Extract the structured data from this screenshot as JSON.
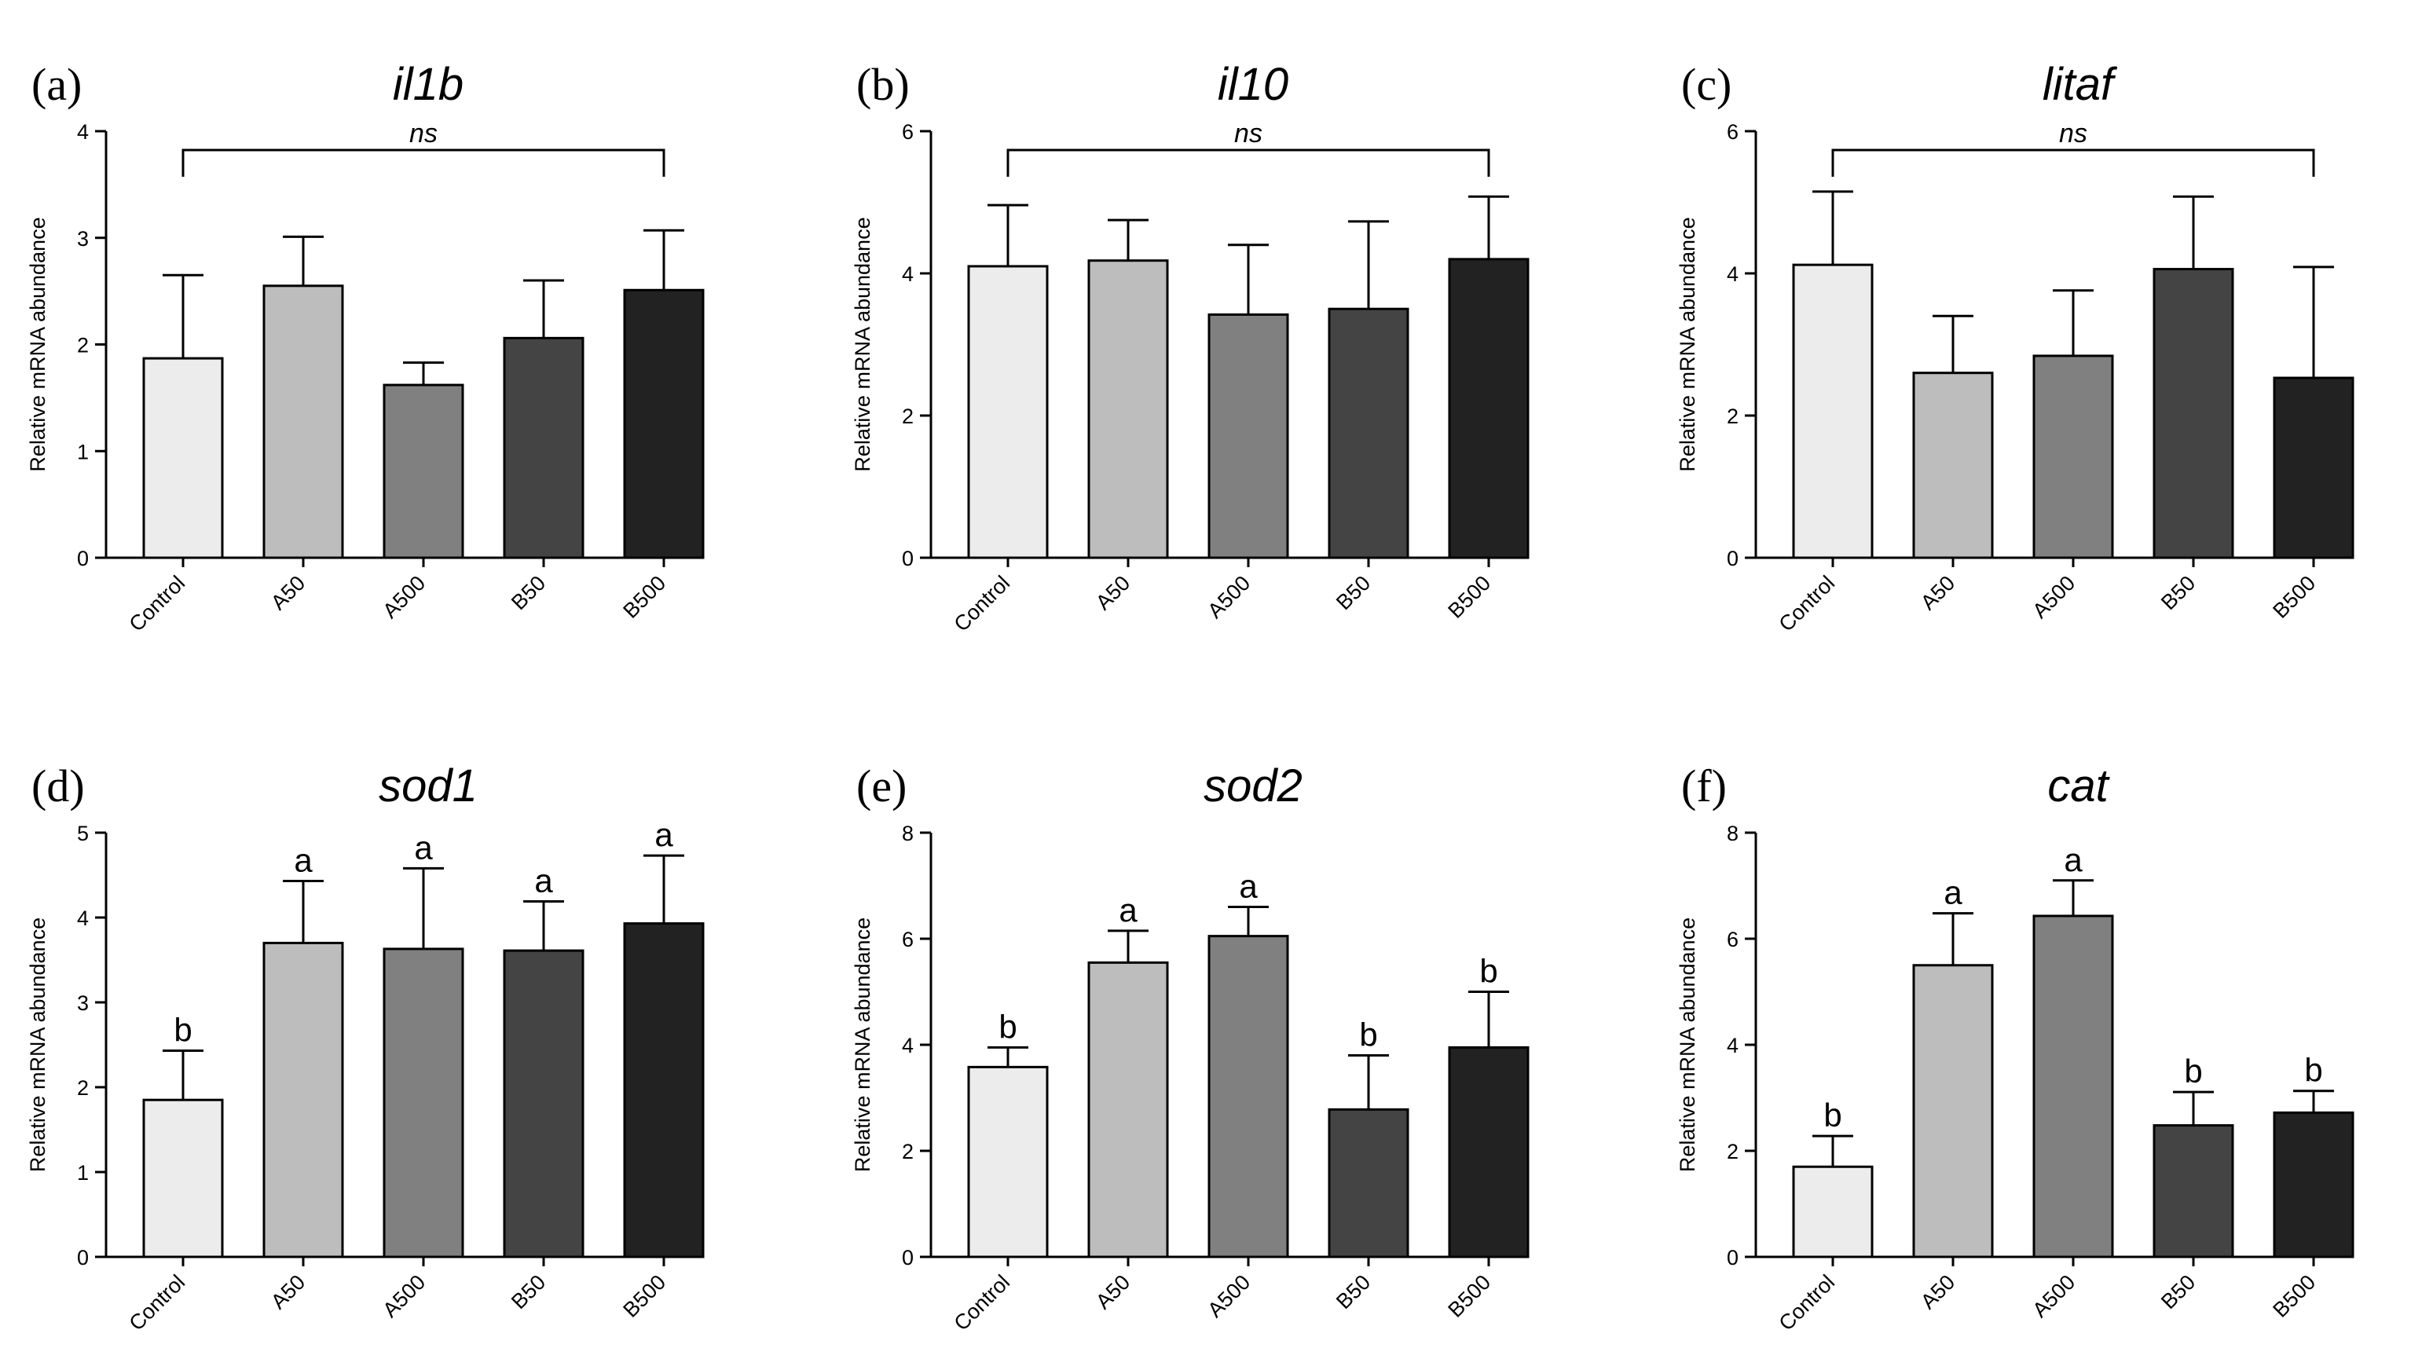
{
  "figure": {
    "y_axis_label": "Relative mRNA abundance",
    "categories": [
      "Control",
      "A50",
      "A500",
      "B50",
      "B500"
    ],
    "bar_colors": [
      "#ececec",
      "#bdbdbd",
      "#808080",
      "#444444",
      "#222222"
    ]
  },
  "chart_data": [
    {
      "type": "bar",
      "panel_label": "(a)",
      "title": "il1b",
      "ylabel": "Relative mRNA abundance",
      "categories": [
        "Control",
        "A50",
        "A500",
        "B50",
        "B500"
      ],
      "values": [
        1.87,
        2.55,
        1.62,
        2.06,
        2.51
      ],
      "errors": [
        0.78,
        0.46,
        0.21,
        0.54,
        0.56
      ],
      "ylim": [
        0,
        4
      ],
      "yticks": [
        0,
        1,
        2,
        3,
        4
      ],
      "annotation": "ns",
      "significance_letters": []
    },
    {
      "type": "bar",
      "panel_label": "(b)",
      "title": "il10",
      "ylabel": "Relative mRNA abundance",
      "categories": [
        "Control",
        "A50",
        "A500",
        "B50",
        "B500"
      ],
      "values": [
        4.1,
        4.18,
        3.42,
        3.5,
        4.2
      ],
      "errors": [
        0.86,
        0.57,
        0.98,
        1.23,
        0.88
      ],
      "ylim": [
        0,
        6
      ],
      "yticks": [
        0,
        2,
        4,
        6
      ],
      "annotation": "ns",
      "significance_letters": []
    },
    {
      "type": "bar",
      "panel_label": "(c)",
      "title": "litaf",
      "ylabel": "Relative mRNA abundance",
      "categories": [
        "Control",
        "A50",
        "A500",
        "B50",
        "B500"
      ],
      "values": [
        4.12,
        2.6,
        2.84,
        4.06,
        2.53
      ],
      "errors": [
        1.03,
        0.8,
        0.92,
        1.02,
        1.56
      ],
      "ylim": [
        0,
        6
      ],
      "yticks": [
        0,
        2,
        4,
        6
      ],
      "annotation": "ns",
      "significance_letters": []
    },
    {
      "type": "bar",
      "panel_label": "(d)",
      "title": "sod1",
      "ylabel": "Relative mRNA abundance",
      "categories": [
        "Control",
        "A50",
        "A500",
        "B50",
        "B500"
      ],
      "values": [
        1.85,
        3.7,
        3.63,
        3.61,
        3.93
      ],
      "errors": [
        0.58,
        0.73,
        0.95,
        0.58,
        0.8
      ],
      "ylim": [
        0,
        5
      ],
      "yticks": [
        0,
        1,
        2,
        3,
        4,
        5
      ],
      "annotation": "",
      "significance_letters": [
        "b",
        "a",
        "a",
        "a",
        "a"
      ]
    },
    {
      "type": "bar",
      "panel_label": "(e)",
      "title": "sod2",
      "ylabel": "Relative mRNA abundance",
      "categories": [
        "Control",
        "A50",
        "A500",
        "B50",
        "B500"
      ],
      "values": [
        3.58,
        5.55,
        6.05,
        2.78,
        3.95
      ],
      "errors": [
        0.37,
        0.6,
        0.55,
        1.02,
        1.05
      ],
      "ylim": [
        0,
        8
      ],
      "yticks": [
        0,
        2,
        4,
        6,
        8
      ],
      "annotation": "",
      "significance_letters": [
        "b",
        "a",
        "a",
        "b",
        "b"
      ]
    },
    {
      "type": "bar",
      "panel_label": "(f)",
      "title": "cat",
      "ylabel": "Relative mRNA abundance",
      "categories": [
        "Control",
        "A50",
        "A500",
        "B50",
        "B500"
      ],
      "values": [
        1.7,
        5.5,
        6.43,
        2.48,
        2.72
      ],
      "errors": [
        0.58,
        0.98,
        0.67,
        0.63,
        0.41
      ],
      "ylim": [
        0,
        8
      ],
      "yticks": [
        0,
        2,
        4,
        6,
        8
      ],
      "annotation": "",
      "significance_letters": [
        "b",
        "a",
        "a",
        "b",
        "b"
      ]
    }
  ]
}
